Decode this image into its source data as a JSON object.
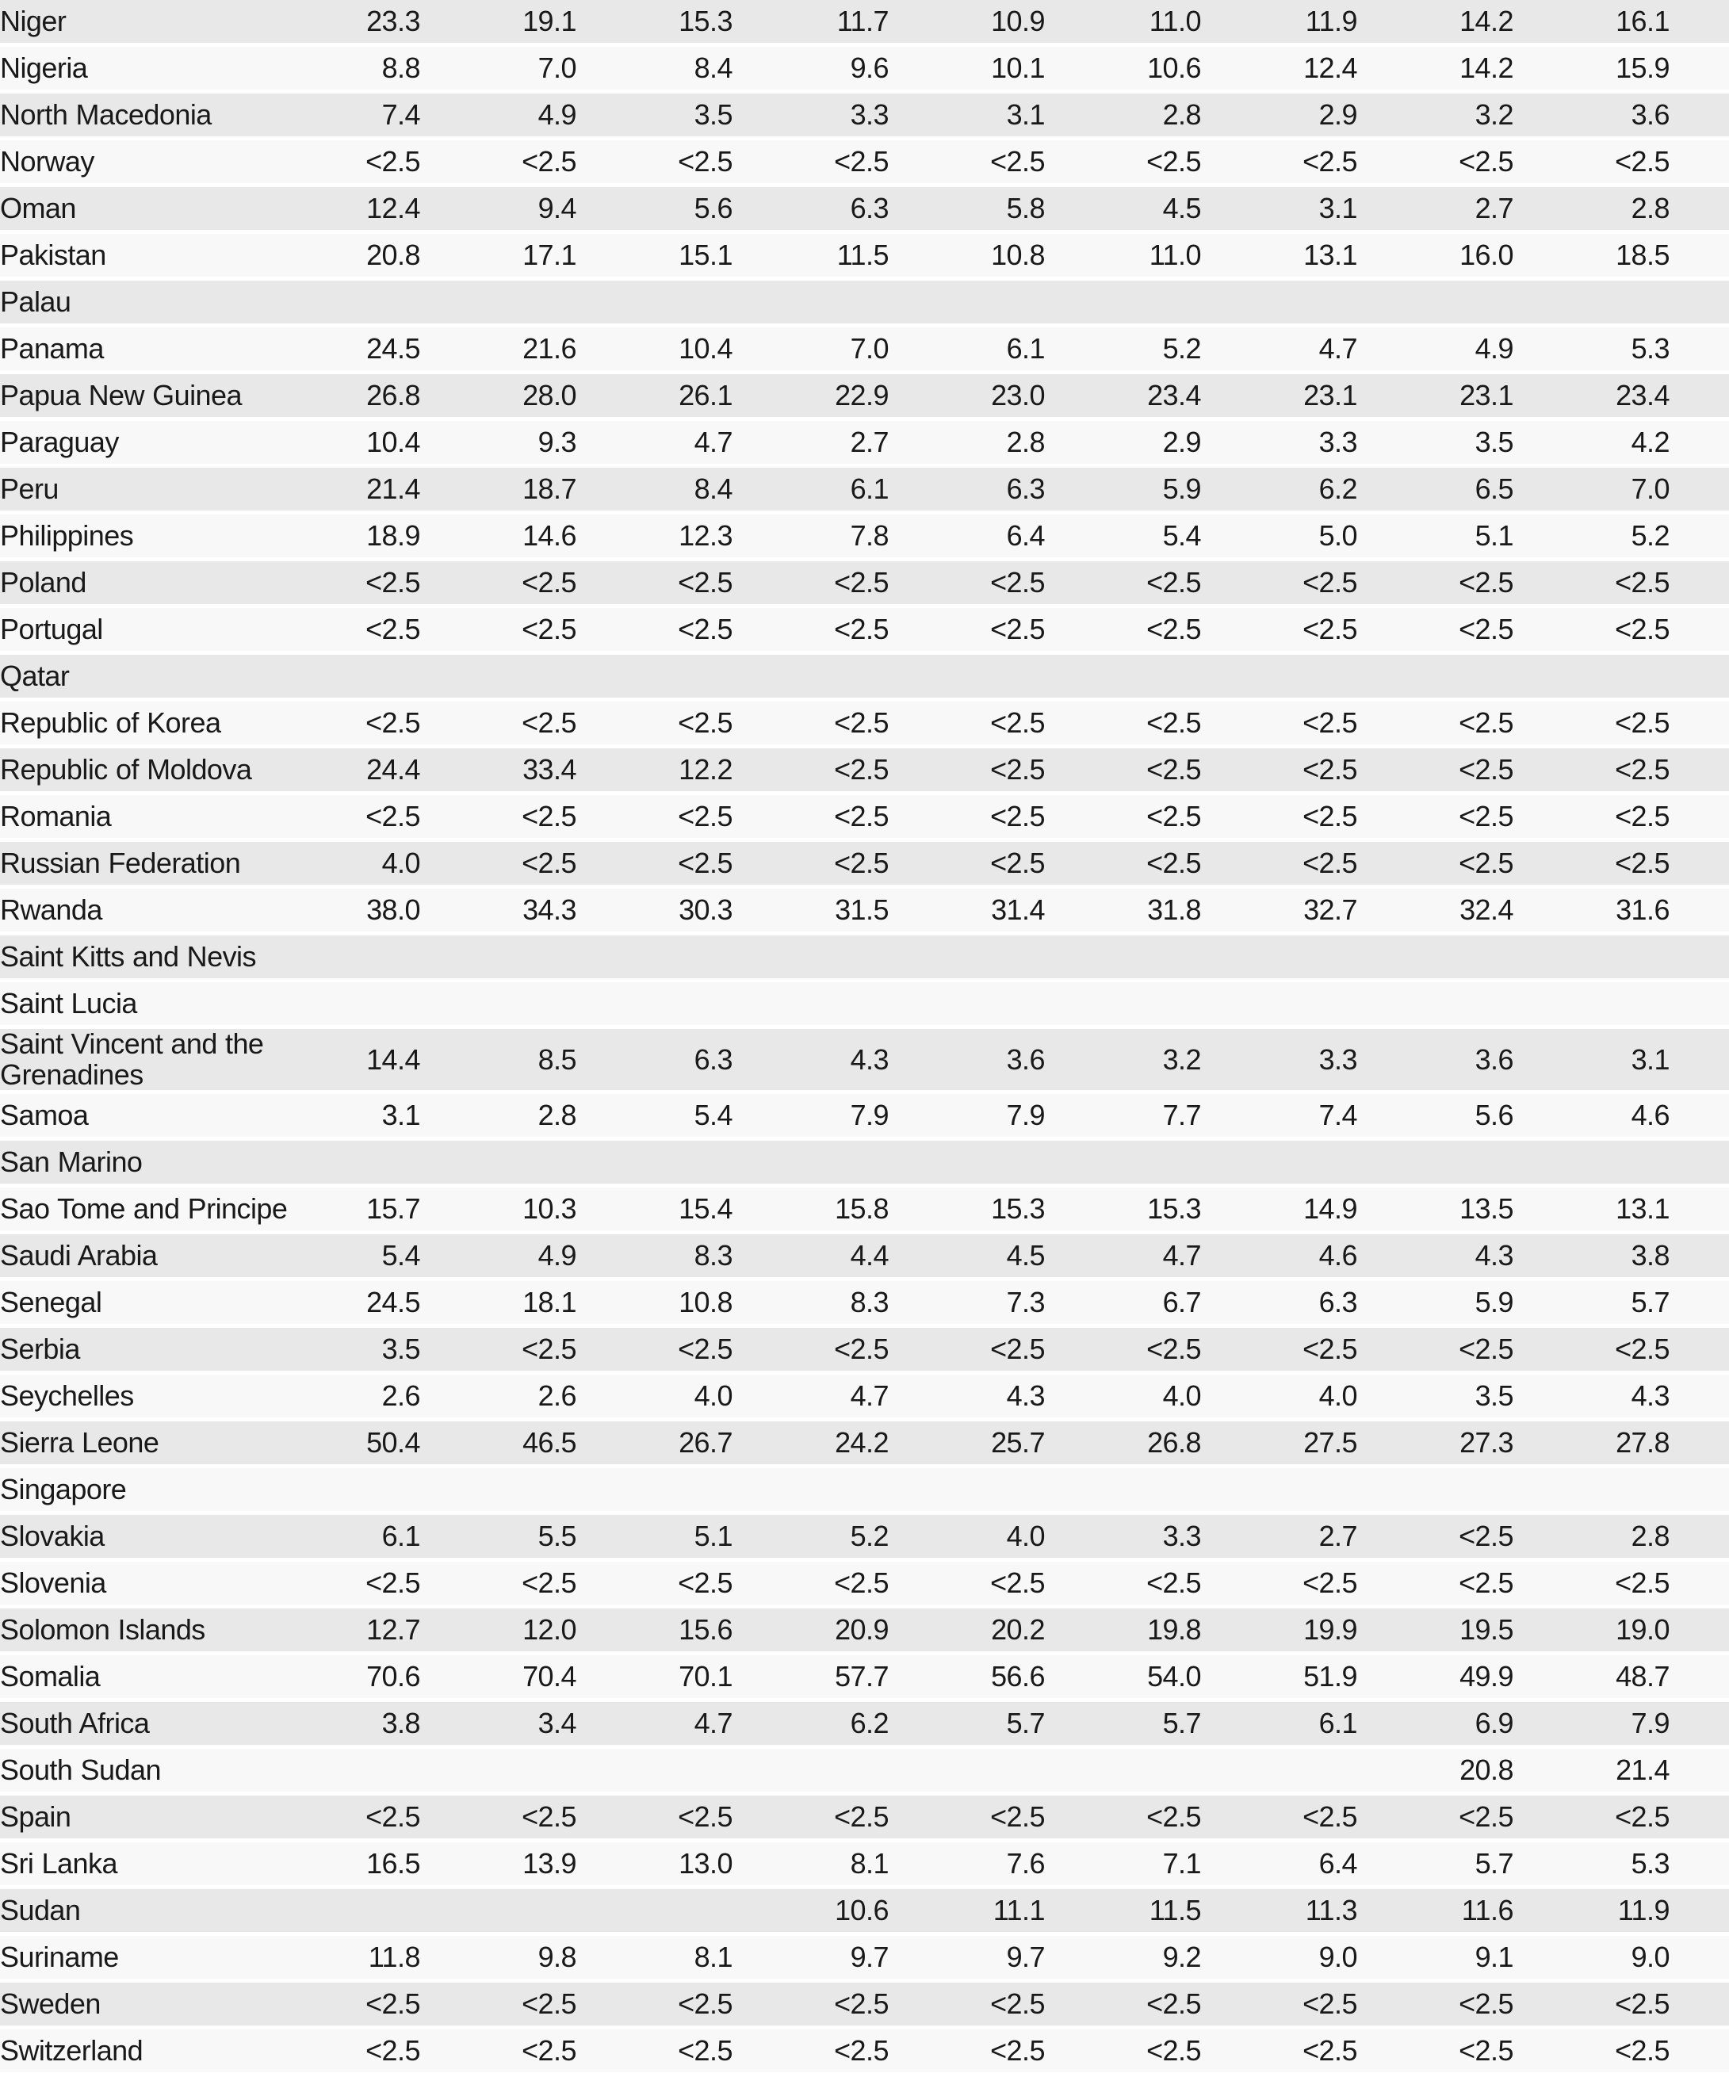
{
  "table": {
    "description": "Country data table with nine numeric value columns (no headers visible)",
    "num_value_columns": 9,
    "below_threshold_label": "<2.5",
    "rows": [
      {
        "country": "Niger",
        "values": [
          "23.3",
          "19.1",
          "15.3",
          "11.7",
          "10.9",
          "11.0",
          "11.9",
          "14.2",
          "16.1"
        ]
      },
      {
        "country": "Nigeria",
        "values": [
          "8.8",
          "7.0",
          "8.4",
          "9.6",
          "10.1",
          "10.6",
          "12.4",
          "14.2",
          "15.9"
        ]
      },
      {
        "country": "North Macedonia",
        "values": [
          "7.4",
          "4.9",
          "3.5",
          "3.3",
          "3.1",
          "2.8",
          "2.9",
          "3.2",
          "3.6"
        ]
      },
      {
        "country": "Norway",
        "values": [
          "<2.5",
          "<2.5",
          "<2.5",
          "<2.5",
          "<2.5",
          "<2.5",
          "<2.5",
          "<2.5",
          "<2.5"
        ]
      },
      {
        "country": "Oman",
        "values": [
          "12.4",
          "9.4",
          "5.6",
          "6.3",
          "5.8",
          "4.5",
          "3.1",
          "2.7",
          "2.8"
        ]
      },
      {
        "country": "Pakistan",
        "values": [
          "20.8",
          "17.1",
          "15.1",
          "11.5",
          "10.8",
          "11.0",
          "13.1",
          "16.0",
          "18.5"
        ]
      },
      {
        "country": "Palau",
        "values": [
          "",
          "",
          "",
          "",
          "",
          "",
          "",
          "",
          ""
        ]
      },
      {
        "country": "Panama",
        "values": [
          "24.5",
          "21.6",
          "10.4",
          "7.0",
          "6.1",
          "5.2",
          "4.7",
          "4.9",
          "5.3"
        ]
      },
      {
        "country": "Papua New Guinea",
        "values": [
          "26.8",
          "28.0",
          "26.1",
          "22.9",
          "23.0",
          "23.4",
          "23.1",
          "23.1",
          "23.4"
        ]
      },
      {
        "country": "Paraguay",
        "values": [
          "10.4",
          "9.3",
          "4.7",
          "2.7",
          "2.8",
          "2.9",
          "3.3",
          "3.5",
          "4.2"
        ]
      },
      {
        "country": "Peru",
        "values": [
          "21.4",
          "18.7",
          "8.4",
          "6.1",
          "6.3",
          "5.9",
          "6.2",
          "6.5",
          "7.0"
        ]
      },
      {
        "country": "Philippines",
        "values": [
          "18.9",
          "14.6",
          "12.3",
          "7.8",
          "6.4",
          "5.4",
          "5.0",
          "5.1",
          "5.2"
        ]
      },
      {
        "country": "Poland",
        "values": [
          "<2.5",
          "<2.5",
          "<2.5",
          "<2.5",
          "<2.5",
          "<2.5",
          "<2.5",
          "<2.5",
          "<2.5"
        ]
      },
      {
        "country": "Portugal",
        "values": [
          "<2.5",
          "<2.5",
          "<2.5",
          "<2.5",
          "<2.5",
          "<2.5",
          "<2.5",
          "<2.5",
          "<2.5"
        ]
      },
      {
        "country": "Qatar",
        "values": [
          "",
          "",
          "",
          "",
          "",
          "",
          "",
          "",
          ""
        ]
      },
      {
        "country": "Republic of Korea",
        "values": [
          "<2.5",
          "<2.5",
          "<2.5",
          "<2.5",
          "<2.5",
          "<2.5",
          "<2.5",
          "<2.5",
          "<2.5"
        ]
      },
      {
        "country": "Republic of Moldova",
        "values": [
          "24.4",
          "33.4",
          "12.2",
          "<2.5",
          "<2.5",
          "<2.5",
          "<2.5",
          "<2.5",
          "<2.5"
        ]
      },
      {
        "country": "Romania",
        "values": [
          "<2.5",
          "<2.5",
          "<2.5",
          "<2.5",
          "<2.5",
          "<2.5",
          "<2.5",
          "<2.5",
          "<2.5"
        ]
      },
      {
        "country": "Russian Federation",
        "values": [
          "4.0",
          "<2.5",
          "<2.5",
          "<2.5",
          "<2.5",
          "<2.5",
          "<2.5",
          "<2.5",
          "<2.5"
        ]
      },
      {
        "country": "Rwanda",
        "values": [
          "38.0",
          "34.3",
          "30.3",
          "31.5",
          "31.4",
          "31.8",
          "32.7",
          "32.4",
          "31.6"
        ]
      },
      {
        "country": "Saint Kitts and Nevis",
        "values": [
          "",
          "",
          "",
          "",
          "",
          "",
          "",
          "",
          ""
        ]
      },
      {
        "country": "Saint Lucia",
        "values": [
          "",
          "",
          "",
          "",
          "",
          "",
          "",
          "",
          ""
        ]
      },
      {
        "country": "Saint Vincent and the Grenadines",
        "values": [
          "14.4",
          "8.5",
          "6.3",
          "4.3",
          "3.6",
          "3.2",
          "3.3",
          "3.6",
          "3.1"
        ]
      },
      {
        "country": "Samoa",
        "values": [
          "3.1",
          "2.8",
          "5.4",
          "7.9",
          "7.9",
          "7.7",
          "7.4",
          "5.6",
          "4.6"
        ]
      },
      {
        "country": "San Marino",
        "values": [
          "",
          "",
          "",
          "",
          "",
          "",
          "",
          "",
          ""
        ]
      },
      {
        "country": "Sao Tome and Principe",
        "values": [
          "15.7",
          "10.3",
          "15.4",
          "15.8",
          "15.3",
          "15.3",
          "14.9",
          "13.5",
          "13.1"
        ]
      },
      {
        "country": "Saudi Arabia",
        "values": [
          "5.4",
          "4.9",
          "8.3",
          "4.4",
          "4.5",
          "4.7",
          "4.6",
          "4.3",
          "3.8"
        ]
      },
      {
        "country": "Senegal",
        "values": [
          "24.5",
          "18.1",
          "10.8",
          "8.3",
          "7.3",
          "6.7",
          "6.3",
          "5.9",
          "5.7"
        ]
      },
      {
        "country": "Serbia",
        "values": [
          "3.5",
          "<2.5",
          "<2.5",
          "<2.5",
          "<2.5",
          "<2.5",
          "<2.5",
          "<2.5",
          "<2.5"
        ]
      },
      {
        "country": "Seychelles",
        "values": [
          "2.6",
          "2.6",
          "4.0",
          "4.7",
          "4.3",
          "4.0",
          "4.0",
          "3.5",
          "4.3"
        ]
      },
      {
        "country": "Sierra Leone",
        "values": [
          "50.4",
          "46.5",
          "26.7",
          "24.2",
          "25.7",
          "26.8",
          "27.5",
          "27.3",
          "27.8"
        ]
      },
      {
        "country": "Singapore",
        "values": [
          "",
          "",
          "",
          "",
          "",
          "",
          "",
          "",
          ""
        ]
      },
      {
        "country": "Slovakia",
        "values": [
          "6.1",
          "5.5",
          "5.1",
          "5.2",
          "4.0",
          "3.3",
          "2.7",
          "<2.5",
          "2.8"
        ]
      },
      {
        "country": "Slovenia",
        "values": [
          "<2.5",
          "<2.5",
          "<2.5",
          "<2.5",
          "<2.5",
          "<2.5",
          "<2.5",
          "<2.5",
          "<2.5"
        ]
      },
      {
        "country": "Solomon Islands",
        "values": [
          "12.7",
          "12.0",
          "15.6",
          "20.9",
          "20.2",
          "19.8",
          "19.9",
          "19.5",
          "19.0"
        ]
      },
      {
        "country": "Somalia",
        "values": [
          "70.6",
          "70.4",
          "70.1",
          "57.7",
          "56.6",
          "54.0",
          "51.9",
          "49.9",
          "48.7"
        ]
      },
      {
        "country": "South Africa",
        "values": [
          "3.8",
          "3.4",
          "4.7",
          "6.2",
          "5.7",
          "5.7",
          "6.1",
          "6.9",
          "7.9"
        ]
      },
      {
        "country": "South Sudan",
        "values": [
          "",
          "",
          "",
          "",
          "",
          "",
          "",
          "20.8",
          "21.4"
        ]
      },
      {
        "country": "Spain",
        "values": [
          "<2.5",
          "<2.5",
          "<2.5",
          "<2.5",
          "<2.5",
          "<2.5",
          "<2.5",
          "<2.5",
          "<2.5"
        ]
      },
      {
        "country": "Sri Lanka",
        "values": [
          "16.5",
          "13.9",
          "13.0",
          "8.1",
          "7.6",
          "7.1",
          "6.4",
          "5.7",
          "5.3"
        ]
      },
      {
        "country": "Sudan",
        "values": [
          "",
          "",
          "",
          "10.6",
          "11.1",
          "11.5",
          "11.3",
          "11.6",
          "11.9"
        ]
      },
      {
        "country": "Suriname",
        "values": [
          "11.8",
          "9.8",
          "8.1",
          "9.7",
          "9.7",
          "9.2",
          "9.0",
          "9.1",
          "9.0"
        ]
      },
      {
        "country": "Sweden",
        "values": [
          "<2.5",
          "<2.5",
          "<2.5",
          "<2.5",
          "<2.5",
          "<2.5",
          "<2.5",
          "<2.5",
          "<2.5"
        ]
      },
      {
        "country": "Switzerland",
        "values": [
          "<2.5",
          "<2.5",
          "<2.5",
          "<2.5",
          "<2.5",
          "<2.5",
          "<2.5",
          "<2.5",
          "<2.5"
        ]
      }
    ]
  },
  "colors": {
    "row_stripe_dark": "#e8e8e8",
    "row_stripe_light": "#f8f8f8",
    "row_separator": "#ffffff",
    "text": "#191919"
  }
}
